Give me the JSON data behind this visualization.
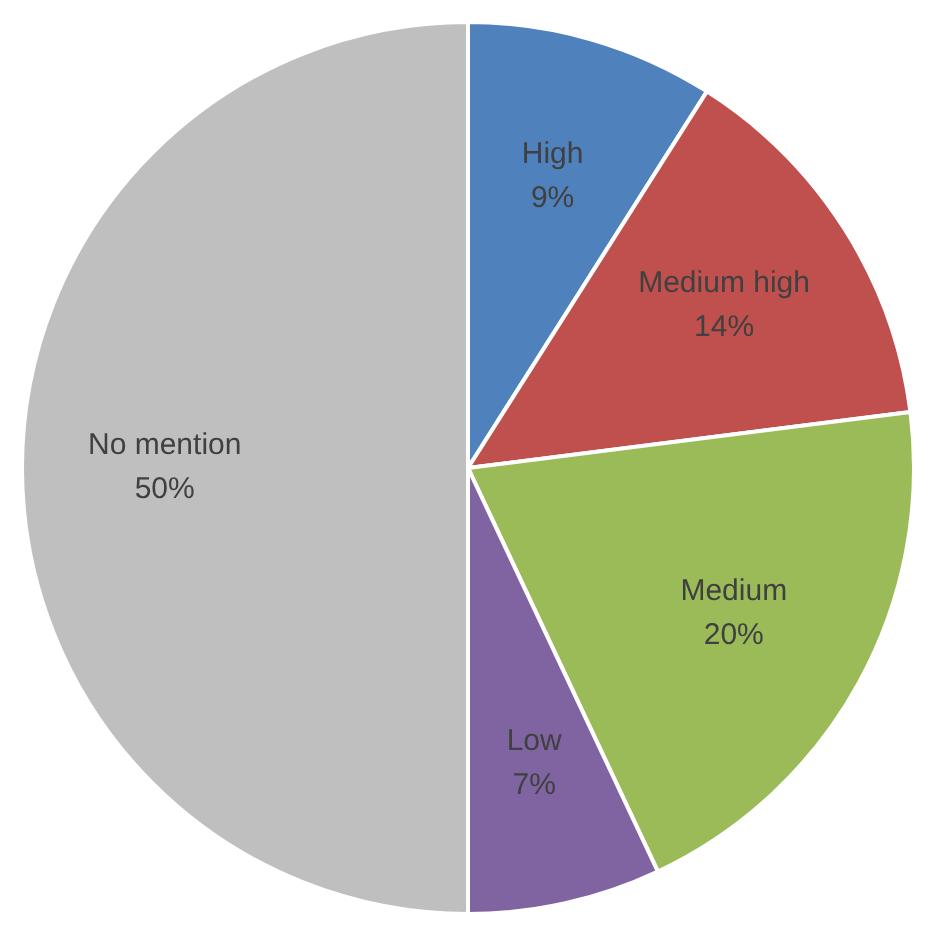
{
  "chart_data": {
    "type": "pie",
    "categories": [
      "High",
      "Medium high",
      "Medium",
      "Low",
      "No mention"
    ],
    "values": [
      9,
      14,
      20,
      7,
      50
    ],
    "colors": [
      "#4f81bd",
      "#c0504d",
      "#9bbb59",
      "#8064a2",
      "#bfbfbf"
    ],
    "value_labels": [
      "9%",
      "14%",
      "20%",
      "7%",
      "50%"
    ],
    "legend": false
  }
}
